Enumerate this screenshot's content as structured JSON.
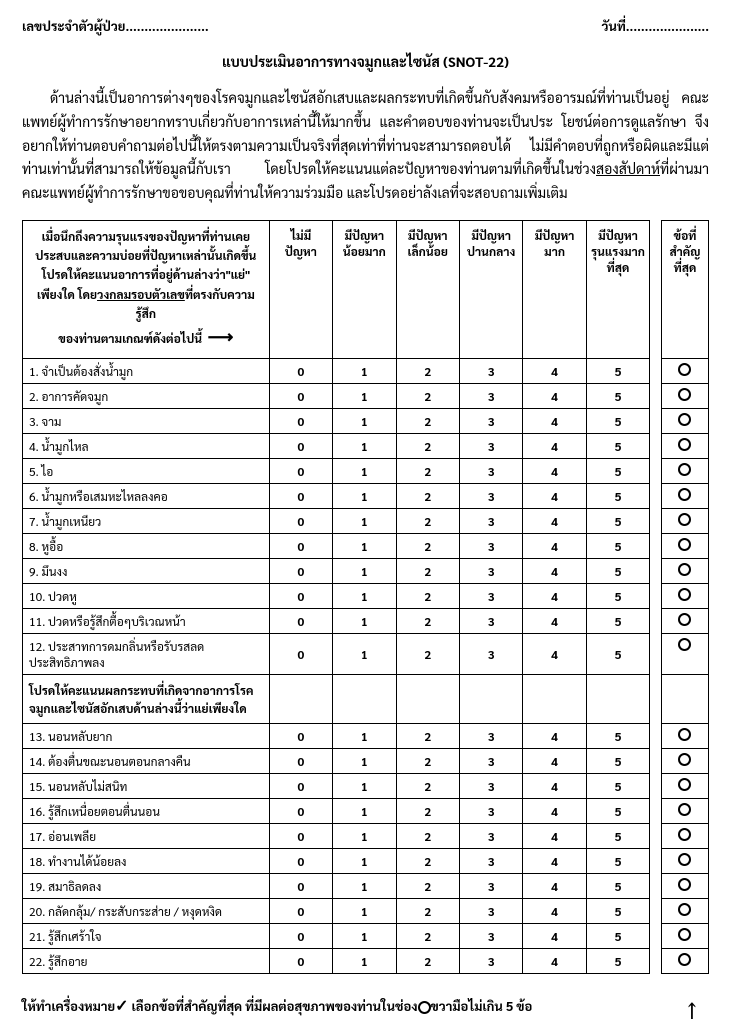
{
  "header": {
    "patient_id_label": "เลขประจำตัวผู้ป่วย......................",
    "date_label": "วันที่......................"
  },
  "title": "แบบประเมินอาการทางจมูกและไซนัส (SNOT-22)",
  "intro": "ด้านล่างนี้เป็นอาการต่างๆของโรคจมูกและไซนัสอักเสบและผลกระทบที่เกิดขึ้นกับสังคมหรืออารมณ์ที่ท่านเป็นอยู่ คณะแพทย์ผู้ทำการรักษาอยากทราบเกี่ยวกับอาการเหล่านี้ให้มากขึ้น และคำตอบของท่านจะเป็นประ โยชน์ต่อการดูแลรักษา จึงอยากให้ท่านตอบคำถามต่อไปนี้ให้ตรงตามความเป็นจริงที่สุดเท่าที่ท่านจะสามารถตอบได้ ไม่มีคำตอบที่ถูกหรือผิดและมีแต่ท่านเท่านั้นที่สามารถให้ข้อมูลนี้กับเรา โดยโปรดให้คะแนนแต่ละปัญหาของท่านตามที่เกิดขึ้นในช่วง",
  "intro_underline": "สองสัปดาห์",
  "intro_tail": "ที่ผ่านมา คณะแพทย์ผู้ทำการรักษาขอขอบคุณที่ท่านให้ความร่วมมือ และโปรดอย่าลังเลที่จะสอบถามเพิ่มเติม",
  "table": {
    "instruction_head_l1": "เมื่อนึกถึงความรุนแรงของปัญหาที่ท่านเคย",
    "instruction_head_l2": "ประสบและความบ่อยที่ปัญหาเหล่านั้นเกิดขึ้น",
    "instruction_head_l3": "โปรดให้คะแนนอาการที่อยู่ด้านล่างว่า\"แย่\"",
    "instruction_head_l4_a": "เพียงใด โดย",
    "instruction_head_l4_u": "วงกลมรอบตัวเลข",
    "instruction_head_l4_b": "ที่ตรงกับความรู้สึก",
    "instruction_head_l5": "ของท่านตามเกณฑ์ดังต่อไปนี้",
    "cols": [
      "ไม่มี\nปัญหา",
      "มีปัญหา\nน้อยมาก",
      "มีปัญหา\nเล็กน้อย",
      "มีปัญหา\nปานกลาง",
      "มีปัญหา\nมาก",
      "มีปัญหา\nรุนแรงมาก\nที่สุด"
    ],
    "important_col": "ข้อที่\nสำคัญ\nที่สุด",
    "scale": [
      "0",
      "1",
      "2",
      "3",
      "4",
      "5"
    ],
    "items_a": [
      {
        "n": "1",
        "t": "จำเป็นต้องสั่งน้ำมูก"
      },
      {
        "n": "2",
        "t": "อาการคัดจมูก"
      },
      {
        "n": "3",
        "t": "จาม"
      },
      {
        "n": "4",
        "t": "น้ำมูกไหล"
      },
      {
        "n": "5",
        "t": "ไอ"
      },
      {
        "n": "6",
        "t": "น้ำมูกหรือเสมหะไหลลงคอ"
      },
      {
        "n": "7",
        "t": "น้ำมูกเหนียว"
      },
      {
        "n": "8",
        "t": "หูอื้อ"
      },
      {
        "n": "9",
        "t": "มึนงง"
      },
      {
        "n": "10",
        "t": "ปวดหู"
      },
      {
        "n": "11",
        "t": "ปวดหรือรู้สึกตื้อๆบริเวณหน้า"
      },
      {
        "n": "12",
        "t": "ประสาทการดมกลิ่นหรือรับรสลดประสิทธิภาพลง"
      }
    ],
    "section_header_l1": "โปรดให้คะแนนผลกระทบที่เกิดจากอาการโรค",
    "section_header_l2": "จมูกและไซนัสอักเสบด้านล่างนี้ว่าแย่เพียงใด",
    "items_b": [
      {
        "n": "13",
        "t": "นอนหลับยาก"
      },
      {
        "n": "14",
        "t": "ต้องตื่นขณะนอนตอนกลางคืน"
      },
      {
        "n": "15",
        "t": "นอนหลับไม่สนิท"
      },
      {
        "n": "16",
        "t": "รู้สึกเหนื่อยตอนตื่นนอน"
      },
      {
        "n": "17",
        "t": "อ่อนเพลีย"
      },
      {
        "n": "18",
        "t": "ทำงานได้น้อยลง"
      },
      {
        "n": "19",
        "t": "สมาธิลดลง"
      },
      {
        "n": "20",
        "t": "กลัดกลุ้ม/ กระสับกระส่าย / หงุดหงิด"
      },
      {
        "n": "21",
        "t": "รู้สึกเศร้าใจ"
      },
      {
        "n": "22",
        "t": "รู้สึกอาย"
      }
    ]
  },
  "footer": {
    "prefix": "ให้ทำเครื่องหมาย",
    "mid": " เลือกข้อที่สำคัญที่สุด ที่มีผลต่อสุขภาพของท่านในช่อง",
    "suffix": "ขวามือไม่เกิน 5 ข้อ"
  }
}
